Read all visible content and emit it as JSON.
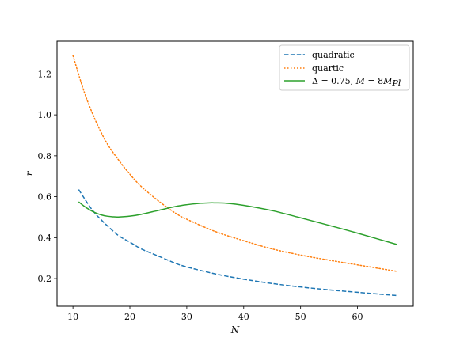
{
  "chart_data": {
    "type": "line",
    "xlabel": "N",
    "ylabel": "r",
    "xlim": [
      7.2,
      69.8
    ],
    "ylim": [
      0.065,
      1.36
    ],
    "xticks": [
      10,
      20,
      30,
      40,
      50,
      60
    ],
    "yticks": [
      0.2,
      0.4,
      0.6,
      0.8,
      1.0,
      1.2
    ],
    "xtick_labels": [
      "10",
      "20",
      "30",
      "40",
      "50",
      "60"
    ],
    "ytick_labels": [
      "0.2",
      "0.4",
      "0.6",
      "0.8",
      "1.0",
      "1.2"
    ],
    "grid": false,
    "legend_position": "top-right",
    "series": [
      {
        "name": "quadratic",
        "color": "#1f77b4",
        "style": "dashed",
        "x": [
          11,
          12,
          13,
          14,
          15,
          16,
          18,
          20,
          22,
          25,
          28,
          30,
          35,
          40,
          45,
          50,
          55,
          60,
          67
        ],
        "y": [
          0.635,
          0.592,
          0.55,
          0.515,
          0.486,
          0.459,
          0.41,
          0.378,
          0.345,
          0.31,
          0.275,
          0.257,
          0.223,
          0.197,
          0.176,
          0.159,
          0.145,
          0.133,
          0.117
        ]
      },
      {
        "name": "quartic",
        "color": "#ff7f0e",
        "style": "dotted",
        "x": [
          10,
          12,
          14,
          16,
          18,
          20,
          22,
          25,
          28,
          30,
          35,
          40,
          45,
          50,
          55,
          60,
          67
        ],
        "y": [
          1.29,
          1.11,
          0.97,
          0.86,
          0.78,
          0.71,
          0.65,
          0.58,
          0.52,
          0.49,
          0.43,
          0.385,
          0.345,
          0.315,
          0.29,
          0.267,
          0.235
        ]
      },
      {
        "name_parts": {
          "delta_symbol": "Δ",
          "delta_eq": " = 0.75, ",
          "m_symbol": "M",
          "m_eq": " = 8",
          "mpl_base": "M",
          "mpl_sub": "Pl"
        },
        "color": "#2ca02c",
        "style": "solid",
        "x": [
          11,
          12,
          13,
          14,
          15,
          16,
          17,
          18,
          20,
          22,
          25,
          28,
          30,
          32,
          34,
          35,
          37,
          40,
          45,
          50,
          55,
          60,
          67
        ],
        "y": [
          0.575,
          0.553,
          0.535,
          0.521,
          0.511,
          0.505,
          0.502,
          0.501,
          0.505,
          0.514,
          0.533,
          0.552,
          0.561,
          0.567,
          0.57,
          0.57,
          0.568,
          0.558,
          0.532,
          0.497,
          0.46,
          0.422,
          0.366
        ]
      }
    ]
  }
}
